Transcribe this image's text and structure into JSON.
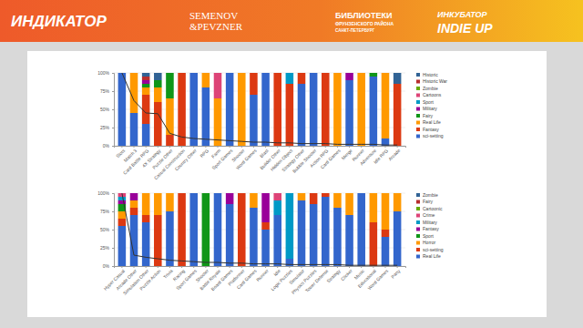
{
  "header": {
    "logos": [
      {
        "lines": [
          "ИНДИКАТОР"
        ]
      },
      {
        "lines": [
          "SEMENOV",
          "&PEVZNER"
        ]
      },
      {
        "lines": [
          "БИБЛИОТЕКИ",
          "ФРУНЗЕНСКОГО РАЙОНА",
          "САНКТ-ПЕТЕРБУРГ"
        ]
      },
      {
        "lines": [
          "ИНКУБАТОР",
          "INDIE UP"
        ]
      }
    ]
  },
  "chart_data": [
    {
      "type": "bar",
      "stacked": true,
      "grid": true,
      "legend": "right",
      "categories": [
        "Slots",
        "Match 3",
        "Card Battle RPG",
        "4X Strategy",
        "Puzzle Other",
        "Casual Construction",
        "Country Other",
        "RPG",
        "Farm",
        "Sport Games",
        "Shooter",
        "Word Games",
        "Blast",
        "Builder Other",
        "Hidden Object",
        "Strategy Other",
        "Bubble Shooter",
        "Action RPG",
        "Card Games",
        "Merge",
        "Runner",
        "Adventure",
        "Idle RPG",
        "Arcade"
      ],
      "ylim": [
        0,
        100
      ],
      "yticks": [
        {
          "value": 0,
          "label": "0%"
        },
        {
          "value": 25,
          "label": "25%"
        },
        {
          "value": 50,
          "label": "50%"
        },
        {
          "value": 75,
          "label": "75%"
        },
        {
          "value": 100,
          "label": "100%"
        }
      ],
      "series": [
        {
          "name": "sci-setting",
          "color": "#3366cc",
          "values": [
            100,
            45,
            30,
            0,
            0,
            0,
            100,
            80,
            0,
            100,
            0,
            70,
            100,
            0,
            0,
            85,
            100,
            0,
            0,
            90,
            0,
            95,
            10,
            0
          ]
        },
        {
          "name": "Fantasy",
          "color": "#dc3912",
          "values": [
            0,
            0,
            40,
            60,
            15,
            100,
            0,
            0,
            0,
            0,
            0,
            30,
            0,
            100,
            85,
            15,
            0,
            100,
            0,
            0,
            0,
            0,
            0,
            85
          ]
        },
        {
          "name": "Real Life",
          "color": "#ff9900",
          "values": [
            0,
            55,
            10,
            20,
            50,
            0,
            0,
            20,
            65,
            0,
            100,
            0,
            0,
            0,
            0,
            0,
            0,
            0,
            100,
            0,
            100,
            0,
            90,
            0
          ]
        },
        {
          "name": "Fairy",
          "color": "#109618",
          "values": [
            0,
            0,
            5,
            10,
            35,
            0,
            0,
            0,
            0,
            0,
            0,
            0,
            0,
            0,
            0,
            0,
            0,
            0,
            0,
            0,
            0,
            5,
            0,
            0
          ]
        },
        {
          "name": "Military",
          "color": "#990099",
          "values": [
            0,
            0,
            5,
            0,
            0,
            0,
            0,
            0,
            0,
            0,
            0,
            0,
            0,
            0,
            0,
            0,
            0,
            0,
            0,
            10,
            0,
            0,
            0,
            0
          ]
        },
        {
          "name": "Sport",
          "color": "#0099c6",
          "values": [
            0,
            0,
            0,
            0,
            0,
            0,
            0,
            0,
            0,
            0,
            0,
            0,
            0,
            0,
            15,
            0,
            0,
            0,
            0,
            0,
            0,
            0,
            0,
            0
          ]
        },
        {
          "name": "Cartoons",
          "color": "#dd4477",
          "values": [
            0,
            0,
            0,
            0,
            0,
            0,
            0,
            0,
            35,
            0,
            0,
            0,
            0,
            0,
            0,
            0,
            0,
            0,
            0,
            0,
            0,
            0,
            0,
            0
          ]
        },
        {
          "name": "Zombie",
          "color": "#66aa00",
          "values": [
            0,
            0,
            0,
            0,
            0,
            0,
            0,
            0,
            0,
            0,
            0,
            0,
            0,
            0,
            0,
            0,
            0,
            0,
            0,
            0,
            0,
            0,
            0,
            0
          ]
        },
        {
          "name": "Historic War",
          "color": "#b82e2e",
          "values": [
            0,
            0,
            5,
            0,
            0,
            0,
            0,
            0,
            0,
            0,
            0,
            0,
            0,
            0,
            0,
            0,
            0,
            0,
            0,
            0,
            0,
            0,
            0,
            0
          ]
        },
        {
          "name": "Historic",
          "color": "#316395",
          "values": [
            0,
            0,
            5,
            10,
            0,
            0,
            0,
            0,
            0,
            0,
            0,
            0,
            0,
            0,
            0,
            0,
            0,
            0,
            0,
            0,
            0,
            0,
            0,
            15
          ]
        },
        {
          "type": "line",
          "color": "#333333",
          "values": [
            100,
            62,
            45,
            44,
            17,
            12,
            10,
            9,
            8,
            7,
            6,
            5,
            5,
            4,
            4,
            3,
            3,
            3,
            2,
            2,
            2,
            2,
            1,
            1
          ]
        }
      ]
    },
    {
      "type": "bar",
      "stacked": true,
      "grid": true,
      "legend": "right",
      "categories": [
        "Hyper Casual",
        "Arcade Other",
        "Simulation Other",
        "Puzzle Action",
        "Trivia",
        "Racing",
        "Sport Games",
        "Shooter",
        "Battle Royale",
        "Board Games",
        "Platformer",
        "Card Games",
        "Runner",
        "Idle",
        "Logic Puzzles",
        "Simulator",
        "Physics Puzzles",
        "Tower Defense",
        "Strategy",
        "Clicker",
        "Music",
        "Educational",
        "Word Games",
        "Party"
      ],
      "ylim": [
        0,
        100
      ],
      "yticks": [
        {
          "value": 0,
          "label": "0%"
        },
        {
          "value": 25,
          "label": "25%"
        },
        {
          "value": 50,
          "label": "50%"
        },
        {
          "value": 75,
          "label": "75%"
        },
        {
          "value": 100,
          "label": "100%"
        }
      ],
      "series": [
        {
          "name": "Real Life",
          "color": "#3366cc",
          "values": [
            55,
            70,
            60,
            0,
            75,
            0,
            100,
            0,
            100,
            85,
            0,
            80,
            50,
            70,
            10,
            90,
            85,
            95,
            80,
            70,
            100,
            0,
            40,
            75
          ]
        },
        {
          "name": "sci-setting",
          "color": "#dc3912",
          "values": [
            10,
            10,
            10,
            70,
            0,
            100,
            0,
            0,
            0,
            0,
            100,
            0,
            10,
            0,
            0,
            0,
            15,
            5,
            0,
            0,
            0,
            60,
            10,
            0
          ]
        },
        {
          "name": "Horror",
          "color": "#ff9900",
          "values": [
            10,
            10,
            30,
            30,
            25,
            0,
            0,
            0,
            0,
            0,
            0,
            20,
            0,
            0,
            0,
            10,
            0,
            0,
            20,
            30,
            0,
            40,
            50,
            25
          ]
        },
        {
          "name": "Sport",
          "color": "#109618",
          "values": [
            10,
            0,
            0,
            0,
            0,
            0,
            0,
            100,
            0,
            0,
            0,
            0,
            0,
            0,
            0,
            0,
            0,
            0,
            0,
            0,
            0,
            0,
            0,
            0
          ]
        },
        {
          "name": "Fantasy",
          "color": "#990099",
          "values": [
            5,
            10,
            0,
            0,
            0,
            0,
            0,
            0,
            0,
            15,
            0,
            0,
            40,
            0,
            0,
            0,
            0,
            0,
            0,
            0,
            0,
            0,
            0,
            0
          ]
        },
        {
          "name": "Military",
          "color": "#0099c6",
          "values": [
            5,
            0,
            0,
            0,
            0,
            0,
            0,
            0,
            0,
            0,
            0,
            0,
            0,
            20,
            90,
            0,
            0,
            0,
            0,
            0,
            0,
            0,
            0,
            0
          ]
        },
        {
          "name": "Crime",
          "color": "#dd4477",
          "values": [
            5,
            0,
            0,
            0,
            0,
            0,
            0,
            0,
            0,
            0,
            0,
            0,
            0,
            10,
            0,
            0,
            0,
            0,
            0,
            0,
            0,
            0,
            0,
            0
          ]
        },
        {
          "name": "Cartoonic",
          "color": "#66aa00",
          "values": [
            0,
            0,
            0,
            0,
            0,
            0,
            0,
            0,
            0,
            0,
            0,
            0,
            0,
            0,
            0,
            0,
            0,
            0,
            0,
            0,
            0,
            0,
            0,
            0
          ]
        },
        {
          "name": "Fairy",
          "color": "#b82e2e",
          "values": [
            0,
            0,
            0,
            0,
            0,
            0,
            0,
            0,
            0,
            0,
            0,
            0,
            0,
            0,
            0,
            0,
            0,
            0,
            0,
            0,
            0,
            0,
            0,
            0
          ]
        },
        {
          "name": "Zombie",
          "color": "#316395",
          "values": [
            0,
            0,
            0,
            0,
            0,
            0,
            0,
            0,
            0,
            0,
            0,
            0,
            0,
            0,
            0,
            0,
            0,
            0,
            0,
            0,
            0,
            0,
            0,
            0
          ]
        },
        {
          "type": "line",
          "color": "#333333",
          "values": [
            100,
            15,
            12,
            10,
            8,
            7,
            6,
            5,
            5,
            4,
            4,
            3,
            3,
            3,
            2,
            2,
            2,
            2,
            2,
            1,
            1,
            1,
            1,
            1
          ]
        }
      ]
    }
  ]
}
